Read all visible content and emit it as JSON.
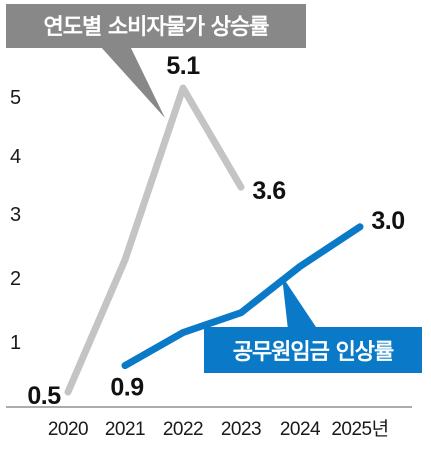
{
  "chart_data": {
    "type": "line",
    "categories": [
      "2020",
      "2021",
      "2022",
      "2023",
      "2024",
      "2025"
    ],
    "x_unit": "년",
    "y_ticks": [
      1,
      2,
      3,
      4,
      5
    ],
    "ylim": [
      0,
      5.6
    ],
    "grid": false,
    "series": [
      {
        "name": "연도별 소비자물가 상승률",
        "color": "#c4c4c4",
        "values": [
          0.5,
          2.5,
          5.1,
          3.6,
          null,
          null
        ],
        "labels": [
          "0.5",
          "",
          "5.1",
          "3.6",
          "",
          ""
        ]
      },
      {
        "name": "공무원임금 인상률",
        "color": "#0a7ac8",
        "values": [
          null,
          0.9,
          1.4,
          1.7,
          2.4,
          3.0
        ],
        "labels": [
          "",
          "0.9",
          "",
          "",
          "",
          "3.0"
        ]
      }
    ]
  }
}
